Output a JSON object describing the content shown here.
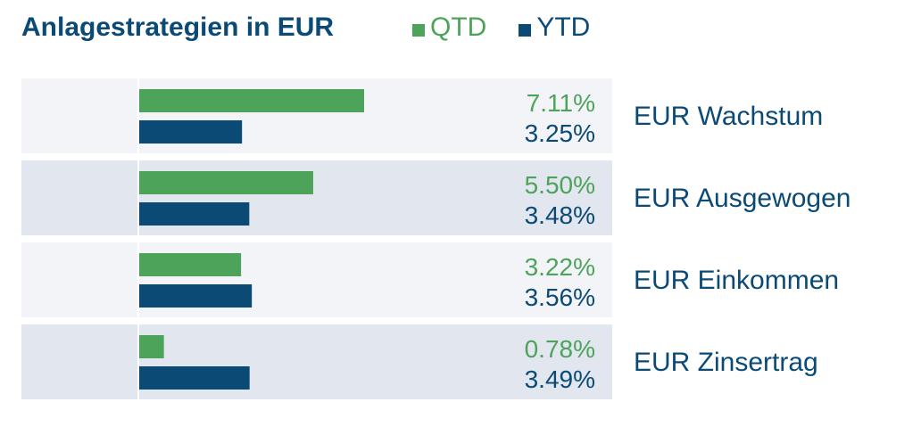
{
  "colors": {
    "qtd": "#4ea35b",
    "ytd": "#0b4a75",
    "row_light": "#f2f4f8",
    "row_dark": "#e1e6ef",
    "text_dark": "#0b4a75"
  },
  "chart_data": {
    "type": "bar",
    "title": "Anlagestrategien in EUR",
    "categories": [
      "EUR Wachstum",
      "EUR Ausgewogen",
      "EUR Einkommen",
      "EUR Zinsertrag"
    ],
    "series": [
      {
        "name": "QTD",
        "values": [
          7.11,
          5.5,
          3.22,
          0.78
        ],
        "labels": [
          "7.11%",
          "5.50%",
          "3.22%",
          "0.78%"
        ]
      },
      {
        "name": "YTD",
        "values": [
          3.25,
          3.48,
          3.56,
          3.49
        ],
        "labels": [
          "3.25%",
          "3.48%",
          "3.56%",
          "3.49%"
        ]
      }
    ],
    "xlim": [
      0,
      7.11
    ],
    "legend": "top"
  }
}
